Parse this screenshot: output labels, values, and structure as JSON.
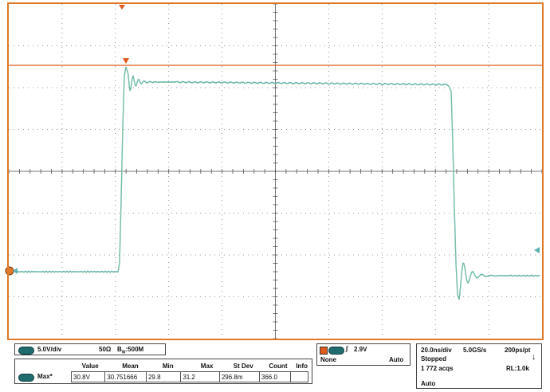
{
  "vertical": {
    "scale": "5.0V/div",
    "impedance": "50Ω",
    "bandwidth_prefix": "B",
    "bandwidth_sub": "W",
    "bandwidth_value": ":500M"
  },
  "trigger": {
    "level": "2.9V",
    "coupling": "None",
    "mode": "Auto"
  },
  "acquisition": {
    "timebase": "20.0ns/div",
    "sample_rate": "5.0GS/s",
    "points": "200ps/pt",
    "state": "Stopped",
    "acqs": "1 772 acqs",
    "record_length": "RL:1.0k",
    "mode": "Auto"
  },
  "measurement": {
    "headers": [
      "Value",
      "Mean",
      "Min",
      "Max",
      "St Dev",
      "Count",
      "Info"
    ],
    "name": "Max*",
    "values": [
      "30.8V",
      "30.751666",
      "29.8",
      "31.2",
      "296.8m",
      "366.0",
      ""
    ]
  },
  "colors": {
    "frame": "#e07a2a",
    "grid": "#555555",
    "trace": "#5bb0b3",
    "cursor": "#e05a1a",
    "channel": "#1f6b6e"
  },
  "icons": {
    "trigger_marker": "down-triangle",
    "cursor_marker": "down-triangle",
    "ground_marker": "left-arrow",
    "trigger_level_marker": "left-arrow",
    "run_stop": "down-arrow"
  }
}
